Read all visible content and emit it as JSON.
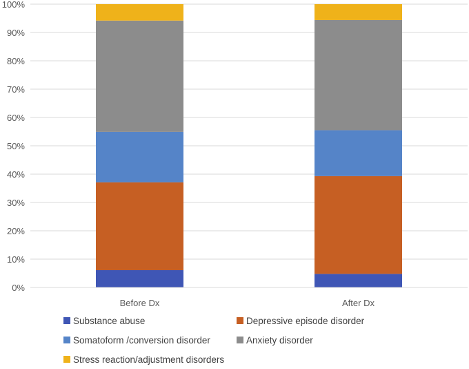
{
  "chart_data": {
    "type": "bar",
    "stacked": true,
    "percent_stacked": true,
    "categories": [
      "Before Dx",
      "After Dx"
    ],
    "series": [
      {
        "name": "Substance abuse",
        "color": "#3f56b5",
        "values": [
          6.1,
          4.8
        ]
      },
      {
        "name": "Depressive episode disorder",
        "color": "#c65f23",
        "values": [
          31.0,
          34.5
        ]
      },
      {
        "name": "Somatoform /conversion disorder",
        "color": "#5584c8",
        "values": [
          17.8,
          16.2
        ]
      },
      {
        "name": "Anxiety disorder",
        "color": "#8c8c8c",
        "values": [
          39.3,
          38.9
        ]
      },
      {
        "name": "Stress reaction/adjustment disorders",
        "color": "#efb21a",
        "values": [
          5.8,
          5.6
        ]
      }
    ],
    "ylim": [
      0,
      100
    ],
    "yticks": [
      "0%",
      "10%",
      "20%",
      "30%",
      "40%",
      "50%",
      "60%",
      "70%",
      "80%",
      "90%",
      "100%"
    ],
    "grid": true,
    "legend_position": "bottom"
  }
}
